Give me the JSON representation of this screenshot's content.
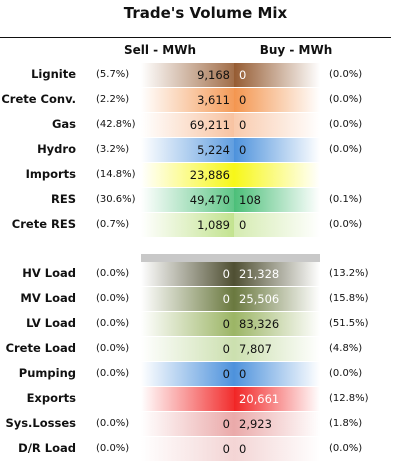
{
  "title": "Trade's Volume Mix",
  "columns": {
    "sell": "Sell - MWh",
    "buy": "Buy - MWh"
  },
  "rows": [
    {
      "label": "Lignite",
      "sell_pct": "(5.7%)",
      "sell": "9,168",
      "buy": "0",
      "buy_pct": "(0.0%)",
      "sell_color": "#8a4a1c",
      "buy_color": "#8a4a1c",
      "sell_weight": 0.8,
      "buy_weight": 0.9
    },
    {
      "label": "Crete Conv.",
      "sell_pct": "(2.2%)",
      "sell": "3,611",
      "buy": "0",
      "buy_pct": "(0.0%)",
      "sell_color": "#f28a3c",
      "buy_color": "#f28a3c",
      "sell_weight": 0.85,
      "buy_weight": 0.9
    },
    {
      "label": "Gas",
      "sell_pct": "(42.8%)",
      "sell": "69,211",
      "buy": "0",
      "buy_pct": "(0.0%)",
      "sell_color": "#f6b48a",
      "buy_color": "#f6b48a",
      "sell_weight": 0.8,
      "buy_weight": 0.7
    },
    {
      "label": "Hydro",
      "sell_pct": "(3.2%)",
      "sell": "5,224",
      "buy": "0",
      "buy_pct": "(0.0%)",
      "sell_color": "#3a86d8",
      "buy_color": "#3a86d8",
      "sell_weight": 0.8,
      "buy_weight": 0.9
    },
    {
      "label": "Imports",
      "sell_pct": "(14.8%)",
      "sell": "23,886",
      "buy": "",
      "buy_pct": "",
      "sell_color": "#f6f600",
      "buy_color": "#f6f600",
      "sell_weight": 0.9,
      "buy_weight": 0.9
    },
    {
      "label": "RES",
      "sell_pct": "(30.6%)",
      "sell": "49,470",
      "buy": "108",
      "buy_pct": "(0.1%)",
      "sell_color": "#38b86a",
      "buy_color": "#38b86a",
      "sell_weight": 0.8,
      "buy_weight": 0.9
    },
    {
      "label": "Crete RES",
      "sell_pct": "(0.7%)",
      "sell": "1,089",
      "buy": "0",
      "buy_pct": "(0.0%)",
      "sell_color": "#b8de7c",
      "buy_color": "#b8de7c",
      "sell_weight": 0.85,
      "buy_weight": 0.6
    },
    {
      "label": "HV Load",
      "sell_pct": "(0.0%)",
      "sell": "0",
      "buy": "21,328",
      "buy_pct": "(13.2%)",
      "sell_color": "#3c3c1c",
      "buy_color": "#3c3c1c",
      "sell_weight": 0.9,
      "buy_weight": 0.9
    },
    {
      "label": "MV Load",
      "sell_pct": "(0.0%)",
      "sell": "0",
      "buy": "25,506",
      "buy_pct": "(15.8%)",
      "sell_color": "#5a6a2a",
      "buy_color": "#5a6a2a",
      "sell_weight": 0.9,
      "buy_weight": 0.9
    },
    {
      "label": "LV Load",
      "sell_pct": "(0.0%)",
      "sell": "0",
      "buy": "83,326",
      "buy_pct": "(51.5%)",
      "sell_color": "#8aa84a",
      "buy_color": "#8aa84a",
      "sell_weight": 0.85,
      "buy_weight": 0.85
    },
    {
      "label": "Crete Load",
      "sell_pct": "(0.0%)",
      "sell": "0",
      "buy": "7,807",
      "buy_pct": "(4.8%)",
      "sell_color": "#c6dca6",
      "buy_color": "#c6dca6",
      "sell_weight": 0.9,
      "buy_weight": 0.9
    },
    {
      "label": "Pumping",
      "sell_pct": "(0.0%)",
      "sell": "0",
      "buy": "0",
      "buy_pct": "(0.0%)",
      "sell_color": "#3a86d8",
      "buy_color": "#3a86d8",
      "sell_weight": 0.9,
      "buy_weight": 0.9
    },
    {
      "label": "Exports",
      "sell_pct": "",
      "sell": "",
      "buy": "20,661",
      "buy_pct": "(12.8%)",
      "sell_color": "#f01818",
      "buy_color": "#f01818",
      "sell_weight": 0.9,
      "buy_weight": 0.95
    },
    {
      "label": "Sys.Losses",
      "sell_pct": "(0.0%)",
      "sell": "0",
      "buy": "2,923",
      "buy_pct": "(1.8%)",
      "sell_color": "#e8a0a0",
      "buy_color": "#e8a0a0",
      "sell_weight": 0.9,
      "buy_weight": 0.9
    },
    {
      "label": "D/R Load",
      "sell_pct": "(0.0%)",
      "sell": "0",
      "buy": "0",
      "buy_pct": "(0.0%)",
      "sell_color": "#f2d0d0",
      "buy_color": "#f2d0d0",
      "sell_weight": 0.9,
      "buy_weight": 0.9
    }
  ],
  "chart_data": {
    "type": "table",
    "title": "Trade's Volume Mix",
    "columns": [
      "Sell - MWh",
      "Buy - MWh"
    ],
    "categories": [
      "Lignite",
      "Crete Conv.",
      "Gas",
      "Hydro",
      "Imports",
      "RES",
      "Crete RES",
      "HV Load",
      "MV Load",
      "LV Load",
      "Crete Load",
      "Pumping",
      "Exports",
      "Sys.Losses",
      "D/R Load"
    ],
    "series": [
      {
        "name": "Sell - MWh",
        "values": [
          9168,
          3611,
          69211,
          5224,
          23886,
          49470,
          1089,
          0,
          0,
          0,
          0,
          0,
          null,
          0,
          0
        ]
      },
      {
        "name": "Buy - MWh",
        "values": [
          0,
          0,
          0,
          0,
          null,
          108,
          0,
          21328,
          25506,
          83326,
          7807,
          0,
          20661,
          2923,
          0
        ]
      }
    ]
  }
}
